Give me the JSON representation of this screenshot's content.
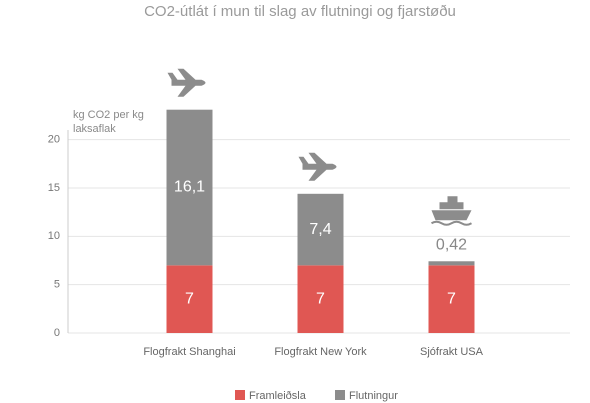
{
  "chart_data": {
    "type": "stacked_bar",
    "title": "CO2-útlát í mun til slag av flutningi og fjarstøðu",
    "y_label": "kg CO2 per kg laksaflak",
    "categories": [
      "Flogfrakt Shanghai",
      "Flogfrakt New York",
      "Sjófrakt USA"
    ],
    "series": [
      {
        "name": "Framleiðsla",
        "color": "#e05753",
        "values": [
          7,
          7,
          7
        ],
        "value_labels": [
          "7",
          "7",
          "7"
        ]
      },
      {
        "name": "Flutningur",
        "color": "#8c8c8c",
        "values": [
          16.1,
          7.4,
          0.42
        ],
        "value_labels": [
          "16,1",
          "7,4",
          "0,42"
        ]
      }
    ],
    "ylim": [
      0,
      21
    ],
    "yticks": [
      0,
      5,
      10,
      15,
      20
    ],
    "grid": true
  }
}
